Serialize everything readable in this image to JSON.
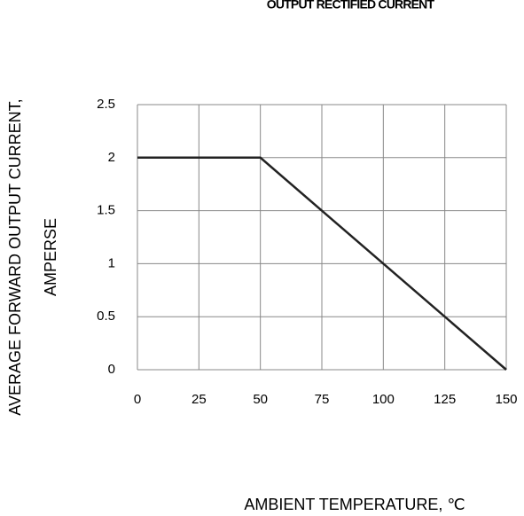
{
  "chart_data": {
    "type": "line",
    "title": "OUTPUT RECTIFIED CURRENT",
    "xlabel": "AMBIENT  TEMPERATURE, ℃",
    "ylabel": [
      "AVERAGE FORWARD OUTPUT CURRENT,",
      "AMPERSE"
    ],
    "x": [
      0,
      50,
      150
    ],
    "series": [
      {
        "name": null,
        "color": "#222222",
        "values": [
          2,
          2,
          0
        ]
      }
    ],
    "xlim": [
      0,
      150
    ],
    "xticks": [
      0,
      25,
      50,
      75,
      100,
      125,
      150
    ],
    "ylim": [
      0,
      2.5
    ],
    "yticks": [
      0,
      0.5,
      1,
      1.5,
      2,
      2.5
    ],
    "grid": true
  }
}
